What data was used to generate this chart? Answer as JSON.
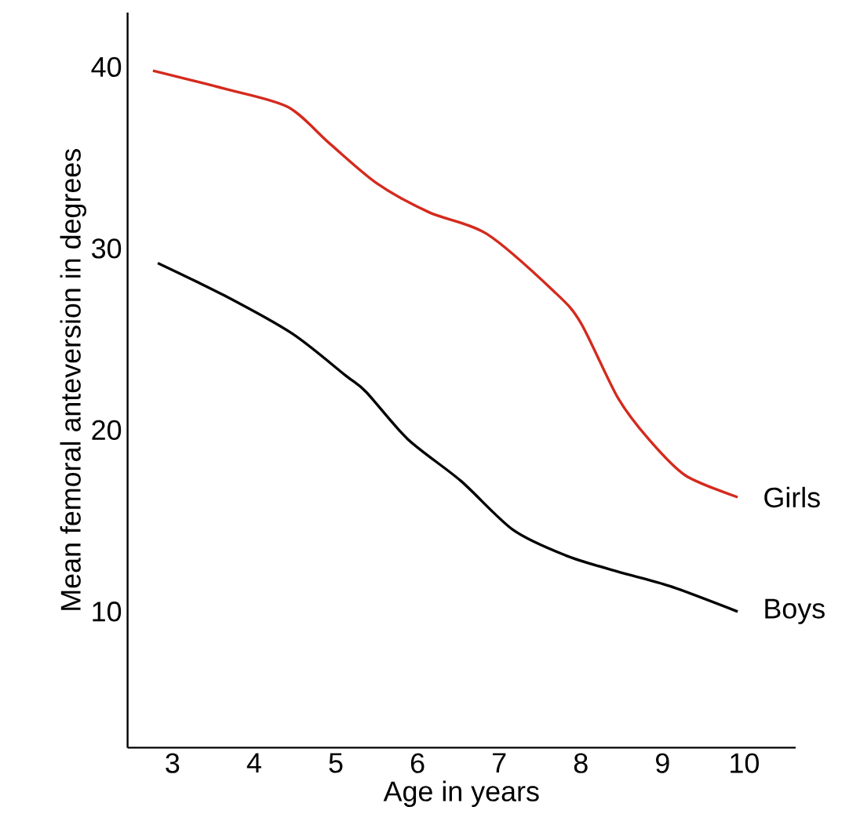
{
  "chart_data": {
    "type": "line",
    "xlabel": "Age in years",
    "ylabel": "Mean femoral anteversion in degrees",
    "xlim": [
      2.45,
      10.63
    ],
    "ylim": [
      2.5,
      43
    ],
    "xticks": [
      3,
      4,
      5,
      6,
      7,
      8,
      9,
      10
    ],
    "yticks": [
      10,
      20,
      30,
      40
    ],
    "series": [
      {
        "name": "Girls",
        "color": "#d42a1e",
        "x": [
          2.76,
          3.64,
          4.41,
          4.92,
          5.5,
          6.14,
          6.85,
          7.68,
          8.0,
          8.45,
          8.83,
          9.28,
          9.92
        ],
        "values": [
          39.8,
          38.8,
          37.8,
          35.8,
          33.6,
          32.0,
          30.8,
          27.6,
          25.9,
          21.8,
          19.5,
          17.5,
          16.3
        ]
      },
      {
        "name": "Boys",
        "color": "#000000",
        "x": [
          2.82,
          3.64,
          4.47,
          5.12,
          5.37,
          5.88,
          6.53,
          7.17,
          7.81,
          8.45,
          9.09,
          9.92
        ],
        "values": [
          29.2,
          27.4,
          25.3,
          23.0,
          22.1,
          19.5,
          17.2,
          14.5,
          13.1,
          12.2,
          11.4,
          10.0
        ]
      }
    ]
  }
}
